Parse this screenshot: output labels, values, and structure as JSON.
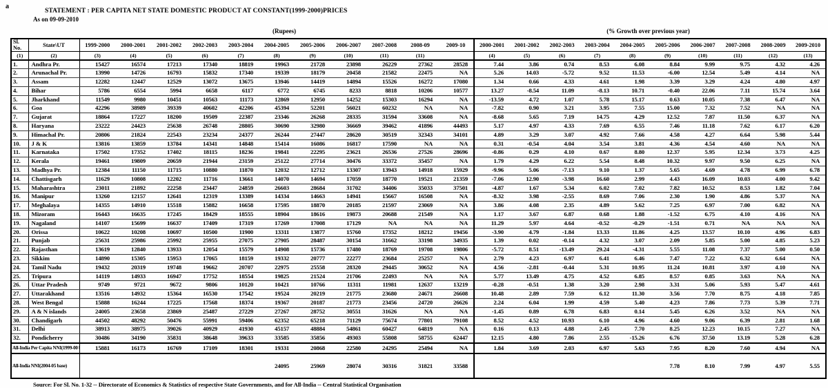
{
  "artifact": "a",
  "header": {
    "title": "STATEMENT : PER CAPITA NET STATE DOMESTIC PRODUCT AT CONSTANT(1999-2000)PRICES",
    "as_on": "As on 09-09-2010",
    "left_unit": "(Rupees)",
    "right_unit": "(% Growth over previous year)"
  },
  "table": {
    "sl_line1": "Sl.",
    "sl_line2": "No.",
    "sl_num": "(1)",
    "state_header": "State\\UT",
    "state_num": "(2)",
    "rupee_years": [
      "1999-2000",
      "2000-2001",
      "2001-2002",
      "2002-2003",
      "2003-2004",
      "2004-2005",
      "2005-2006",
      "2006-2007",
      "2007-2008",
      "2008-09",
      "2009-10"
    ],
    "rupee_nums": [
      "(3)",
      "(4)",
      "(5)",
      "(6)",
      "(7)",
      "(8)",
      "(9)",
      "(10)",
      "(11)",
      "(11)",
      ""
    ],
    "growth_years": [
      "2000-2001",
      "2001-2002",
      "2002-2003",
      "2003-2004",
      "2004-2005",
      "2005-2006",
      "2006-2007",
      "2007-2008",
      "2008-2009",
      "2009-2010"
    ],
    "growth_nums": [
      "(4)",
      "(5)",
      "(6)",
      "(7)",
      "(8)",
      "(9)",
      "(10)",
      "(11)",
      "(12)",
      "(13)"
    ],
    "rows": [
      {
        "sl": "1.",
        "state": "Andhra Pr.",
        "rupees": [
          "15427",
          "16574",
          "17213",
          "17340",
          "18819",
          "19963",
          "21728",
          "23898",
          "26229",
          "27362",
          "28528"
        ],
        "growth": [
          "7.44",
          "3.86",
          "0.74",
          "8.53",
          "6.08",
          "8.84",
          "9.99",
          "9.75",
          "4.32",
          "4.26"
        ]
      },
      {
        "sl": "2.",
        "state": "Arunachal Pr.",
        "rupees": [
          "13990",
          "14726",
          "16793",
          "15832",
          "17340",
          "19339",
          "18179",
          "20458",
          "21582",
          "22475",
          "NA"
        ],
        "growth": [
          "5.26",
          "14.03",
          "-5.72",
          "9.52",
          "11.53",
          "-6.00",
          "12.54",
          "5.49",
          "4.14",
          "NA"
        ]
      },
      {
        "sl": "3.",
        "state": "Assam",
        "rupees": [
          "12282",
          "12447",
          "12529",
          "13072",
          "13675",
          "13946",
          "14419",
          "14894",
          "15526",
          "16272",
          "17080"
        ],
        "growth": [
          "1.34",
          "0.66",
          "4.33",
          "4.61",
          "1.98",
          "3.39",
          "3.29",
          "4.24",
          "4.80",
          "4.97"
        ]
      },
      {
        "sl": "4.",
        "state": "Bihar",
        "rupees": [
          "5786",
          "6554",
          "5994",
          "6658",
          "6117",
          "6772",
          "6745",
          "8233",
          "8818",
          "10206",
          "10577"
        ],
        "growth": [
          "13.27",
          "-8.54",
          "11.09",
          "-8.13",
          "10.71",
          "-0.40",
          "22.06",
          "7.11",
          "15.74",
          "3.64"
        ]
      },
      {
        "sl": "5.",
        "state": "Jharkhand",
        "rupees": [
          "11549",
          "9980",
          "10451",
          "10563",
          "11173",
          "12869",
          "12950",
          "14252",
          "15303",
          "16294",
          "NA"
        ],
        "growth": [
          "-13.59",
          "4.72",
          "1.07",
          "5.78",
          "15.17",
          "0.63",
          "10.05",
          "7.38",
          "6.47",
          "NA"
        ]
      },
      {
        "sl": "6.",
        "state": "Goa",
        "rupees": [
          "42296",
          "38989",
          "39339",
          "40602",
          "42206",
          "45394",
          "52201",
          "56021",
          "60232",
          "NA",
          "NA"
        ],
        "growth": [
          "-7.82",
          "0.90",
          "3.21",
          "3.95",
          "7.55",
          "15.00",
          "7.32",
          "7.52",
          "NA",
          "NA"
        ]
      },
      {
        "sl": "7.",
        "state": "Gujarat",
        "rupees": [
          "18864",
          "17227",
          "18200",
          "19509",
          "22387",
          "23346",
          "26268",
          "28335",
          "31594",
          "33608",
          "NA"
        ],
        "growth": [
          "-8.68",
          "5.65",
          "7.19",
          "14.75",
          "4.29",
          "12.52",
          "7.87",
          "11.50",
          "6.37",
          "NA"
        ]
      },
      {
        "sl": "8.",
        "state": "Haryana",
        "rupees": [
          "23222",
          "24423",
          "25638",
          "26748",
          "28805",
          "30690",
          "32980",
          "36669",
          "39462",
          "41896",
          "44493"
        ],
        "growth": [
          "5.17",
          "4.97",
          "4.33",
          "7.69",
          "6.55",
          "7.46",
          "11.18",
          "7.62",
          "6.17",
          "6.20"
        ]
      },
      {
        "sl": "9.",
        "state": "Himachal Pr.",
        "rupees": [
          "20806",
          "21824",
          "22543",
          "23234",
          "24377",
          "26244",
          "27447",
          "28620",
          "30519",
          "32343",
          "34101"
        ],
        "growth": [
          "4.89",
          "3.29",
          "3.07",
          "4.92",
          "7.66",
          "4.58",
          "4.27",
          "6.64",
          "5.98",
          "5.44"
        ]
      },
      {
        "sl": "10.",
        "state": "J & K",
        "rupees": [
          "13816",
          "13859",
          "13784",
          "14341",
          "14848",
          "15414",
          "16086",
          "16817",
          "17590",
          "NA",
          "NA"
        ],
        "growth": [
          "0.31",
          "-0.54",
          "4.04",
          "3.54",
          "3.81",
          "4.36",
          "4.54",
          "4.60",
          "NA",
          "NA"
        ]
      },
      {
        "sl": "11.",
        "state": "Karnataka",
        "rupees": [
          "17502",
          "17352",
          "17402",
          "18115",
          "18236",
          "19841",
          "22295",
          "23621",
          "26536",
          "27526",
          "28696"
        ],
        "growth": [
          "-0.86",
          "0.29",
          "4.10",
          "0.67",
          "8.80",
          "12.37",
          "5.95",
          "12.34",
          "3.73",
          "4.25"
        ]
      },
      {
        "sl": "12.",
        "state": "Kerala",
        "rupees": [
          "19461",
          "19809",
          "20659",
          "21944",
          "23159",
          "25122",
          "27714",
          "30476",
          "33372",
          "35457",
          "NA"
        ],
        "growth": [
          "1.79",
          "4.29",
          "6.22",
          "5.54",
          "8.48",
          "10.32",
          "9.97",
          "9.50",
          "6.25",
          "NA"
        ]
      },
      {
        "sl": "13.",
        "state": "Madhya Pr.",
        "rupees": [
          "12384",
          "11150",
          "11715",
          "10880",
          "11870",
          "12032",
          "12712",
          "13307",
          "13943",
          "14918",
          "15929"
        ],
        "growth": [
          "-9.96",
          "5.06",
          "-7.13",
          "9.10",
          "1.37",
          "5.65",
          "4.69",
          "4.78",
          "6.99",
          "6.78"
        ]
      },
      {
        "sl": "14.",
        "state": "Chattisgarh",
        "rupees": [
          "11629",
          "10808",
          "12202",
          "11716",
          "13661",
          "14070",
          "14694",
          "17059",
          "18770",
          "19521",
          "21359"
        ],
        "growth": [
          "-7.06",
          "12.90",
          "-3.98",
          "16.60",
          "2.99",
          "4.43",
          "16.09",
          "10.03",
          "4.00",
          "9.42"
        ]
      },
      {
        "sl": "15.",
        "state": "Maharashtra",
        "rupees": [
          "23011",
          "21892",
          "22258",
          "23447",
          "24859",
          "26603",
          "28684",
          "31702",
          "34406",
          "35033",
          "37501"
        ],
        "growth": [
          "-4.87",
          "1.67",
          "5.34",
          "6.02",
          "7.02",
          "7.82",
          "10.52",
          "8.53",
          "1.82",
          "7.04"
        ]
      },
      {
        "sl": "16.",
        "state": "Manipur",
        "rupees": [
          "13260",
          "12157",
          "12641",
          "12319",
          "13389",
          "14334",
          "14663",
          "14941",
          "15667",
          "16508",
          "NA"
        ],
        "growth": [
          "-8.32",
          "3.98",
          "-2.55",
          "8.69",
          "7.06",
          "2.30",
          "1.90",
          "4.86",
          "5.37",
          "NA"
        ]
      },
      {
        "sl": "17.",
        "state": "Meghalaya",
        "rupees": [
          "14355",
          "14910",
          "15518",
          "15882",
          "16658",
          "17595",
          "18870",
          "20185",
          "21597",
          "23069",
          "NA"
        ],
        "growth": [
          "3.86",
          "4.08",
          "2.35",
          "4.89",
          "5.62",
          "7.25",
          "6.97",
          "7.00",
          "6.82",
          "NA"
        ]
      },
      {
        "sl": "18.",
        "state": "Mizoram",
        "rupees": [
          "16443",
          "16635",
          "17245",
          "18429",
          "18555",
          "18904",
          "18616",
          "19873",
          "20688",
          "21549",
          "NA"
        ],
        "growth": [
          "1.17",
          "3.67",
          "6.87",
          "0.68",
          "1.88",
          "-1.52",
          "6.75",
          "4.10",
          "4.16",
          "NA"
        ]
      },
      {
        "sl": "19.",
        "state": "Nagaland",
        "rupees": [
          "14107",
          "15699",
          "16637",
          "17409",
          "17319",
          "17269",
          "17008",
          "17129",
          "NA",
          "NA",
          "NA"
        ],
        "growth": [
          "11.29",
          "5.97",
          "4.64",
          "-0.52",
          "-0.29",
          "-1.51",
          "0.71",
          "NA",
          "NA",
          "NA"
        ]
      },
      {
        "sl": "20.",
        "state": "Orissa",
        "rupees": [
          "10622",
          "10208",
          "10697",
          "10500",
          "11900",
          "13311",
          "13877",
          "15760",
          "17352",
          "18212",
          "19456"
        ],
        "growth": [
          "-3.90",
          "4.79",
          "-1.84",
          "13.33",
          "11.86",
          "4.25",
          "13.57",
          "10.10",
          "4.96",
          "6.83"
        ]
      },
      {
        "sl": "21.",
        "state": "Punjab",
        "rupees": [
          "25631",
          "25986",
          "25992",
          "25955",
          "27075",
          "27905",
          "28487",
          "30154",
          "31662",
          "33198",
          "34935"
        ],
        "growth": [
          "1.39",
          "0.02",
          "-0.14",
          "4.32",
          "3.07",
          "2.09",
          "5.85",
          "5.00",
          "4.85",
          "5.23"
        ]
      },
      {
        "sl": "22.",
        "state": "Rajasthan",
        "rupees": [
          "13619",
          "12840",
          "13933",
          "12054",
          "15579",
          "14908",
          "15736",
          "17480",
          "18769",
          "19708",
          "19806"
        ],
        "growth": [
          "-5.72",
          "8.51",
          "-13.49",
          "29.24",
          "-4.31",
          "5.55",
          "11.08",
          "7.37",
          "5.00",
          "0.50"
        ]
      },
      {
        "sl": "23.",
        "state": "Sikkim",
        "rupees": [
          "14890",
          "15305",
          "15953",
          "17065",
          "18159",
          "19332",
          "20777",
          "22277",
          "23684",
          "25257",
          "NA"
        ],
        "growth": [
          "2.79",
          "4.23",
          "6.97",
          "6.41",
          "6.46",
          "7.47",
          "7.22",
          "6.32",
          "6.64",
          "NA"
        ]
      },
      {
        "sl": "24.",
        "state": "Tamil Nadu",
        "rupees": [
          "19432",
          "20319",
          "19748",
          "19662",
          "20707",
          "22975",
          "25558",
          "28320",
          "29445",
          "30652",
          "NA"
        ],
        "growth": [
          "4.56",
          "-2.81",
          "-0.44",
          "5.31",
          "10.95",
          "11.24",
          "10.81",
          "3.97",
          "4.10",
          "NA"
        ]
      },
      {
        "sl": "25.",
        "state": "Tripura",
        "rupees": [
          "14119",
          "14933",
          "16947",
          "17752",
          "18554",
          "19825",
          "21524",
          "21706",
          "22493",
          "NA",
          "NA"
        ],
        "growth": [
          "5.77",
          "13.49",
          "4.75",
          "4.52",
          "6.85",
          "8.57",
          "0.85",
          "3.63",
          "NA",
          "NA"
        ]
      },
      {
        "sl": "26.",
        "state": "Uttar Pradesh",
        "rupees": [
          "9749",
          "9721",
          "9672",
          "9806",
          "10120",
          "10421",
          "10766",
          "11311",
          "11981",
          "12637",
          "13219"
        ],
        "growth": [
          "-0.28",
          "-0.51",
          "1.38",
          "3.20",
          "2.98",
          "3.31",
          "5.06",
          "5.93",
          "5.47",
          "4.61"
        ]
      },
      {
        "sl": "27.",
        "state": "Uttarakhand",
        "rupees": [
          "13516",
          "14932",
          "15364",
          "16530",
          "17542",
          "19524",
          "20219",
          "21775",
          "23680",
          "24671",
          "26608"
        ],
        "growth": [
          "10.48",
          "2.89",
          "7.59",
          "6.12",
          "11.30",
          "3.56",
          "7.70",
          "8.75",
          "4.18",
          "7.85"
        ]
      },
      {
        "sl": "28.",
        "state": "West Bengal",
        "rupees": [
          "15888",
          "16244",
          "17225",
          "17568",
          "18374",
          "19367",
          "20187",
          "21773",
          "23456",
          "24720",
          "26626"
        ],
        "growth": [
          "2.24",
          "6.04",
          "1.99",
          "4.59",
          "5.40",
          "4.23",
          "7.86",
          "7.73",
          "5.39",
          "7.71"
        ]
      },
      {
        "sl": "29.",
        "state": "A & N islands",
        "rupees": [
          "24005",
          "23658",
          "23869",
          "25487",
          "27229",
          "27267",
          "28752",
          "30551",
          "31626",
          "NA",
          "NA"
        ],
        "growth": [
          "-1.45",
          "0.89",
          "6.78",
          "6.83",
          "0.14",
          "5.45",
          "6.26",
          "3.52",
          "NA",
          "NA"
        ]
      },
      {
        "sl": "30.",
        "state": "Chandigarh",
        "rupees": [
          "44502",
          "48292",
          "50476",
          "55991",
          "59406",
          "62352",
          "65218",
          "71129",
          "75674",
          "77801",
          "79108"
        ],
        "growth": [
          "8.52",
          "4.52",
          "10.93",
          "6.10",
          "4.96",
          "4.60",
          "9.06",
          "6.39",
          "2.81",
          "1.68"
        ]
      },
      {
        "sl": "31.",
        "state": "Delhi",
        "rupees": [
          "38913",
          "38975",
          "39026",
          "40929",
          "41930",
          "45157",
          "48884",
          "54861",
          "60427",
          "64819",
          "NA"
        ],
        "growth": [
          "0.16",
          "0.13",
          "4.88",
          "2.45",
          "7.70",
          "8.25",
          "12.23",
          "10.15",
          "7.27",
          "NA"
        ]
      },
      {
        "sl": "32.",
        "state": "Pondicherry",
        "rupees": [
          "30486",
          "34190",
          "35831",
          "38648",
          "39633",
          "33585",
          "35856",
          "49303",
          "55808",
          "58755",
          "62447"
        ],
        "growth": [
          "12.15",
          "4.80",
          "7.86",
          "2.55",
          "-15.26",
          "6.76",
          "37.50",
          "13.19",
          "5.28",
          "6.28"
        ]
      }
    ],
    "totals": [
      {
        "kind": "total",
        "label": "All-India Per Capita NNI(1999-00 ba",
        "rupees": [
          "15881",
          "16173",
          "16769",
          "17109",
          "18301",
          "19331",
          "20868",
          "22580",
          "24295",
          "25494",
          "NA"
        ],
        "growth": [
          "1.84",
          "3.69",
          "2.03",
          "6.97",
          "5.63",
          "7.95",
          "8.20",
          "7.60",
          "4.94",
          "NA"
        ]
      },
      {
        "kind": "nni",
        "label": "All-India NNI(2004-05 base)",
        "rupees": [
          "",
          "",
          "",
          "",
          "",
          "24095",
          "25969",
          "28074",
          "30316",
          "31821",
          "33588"
        ],
        "growth": [
          "",
          "",
          "",
          "",
          "",
          "7.78",
          "8.10",
          "7.99",
          "4.97",
          "5.55"
        ]
      }
    ]
  },
  "footer": {
    "source": "Source:  For Sl. No. 1-32 -- Directorate of Economics & Statistics of respective State Governments, and for All-India -- Central Statistical Organisation"
  }
}
